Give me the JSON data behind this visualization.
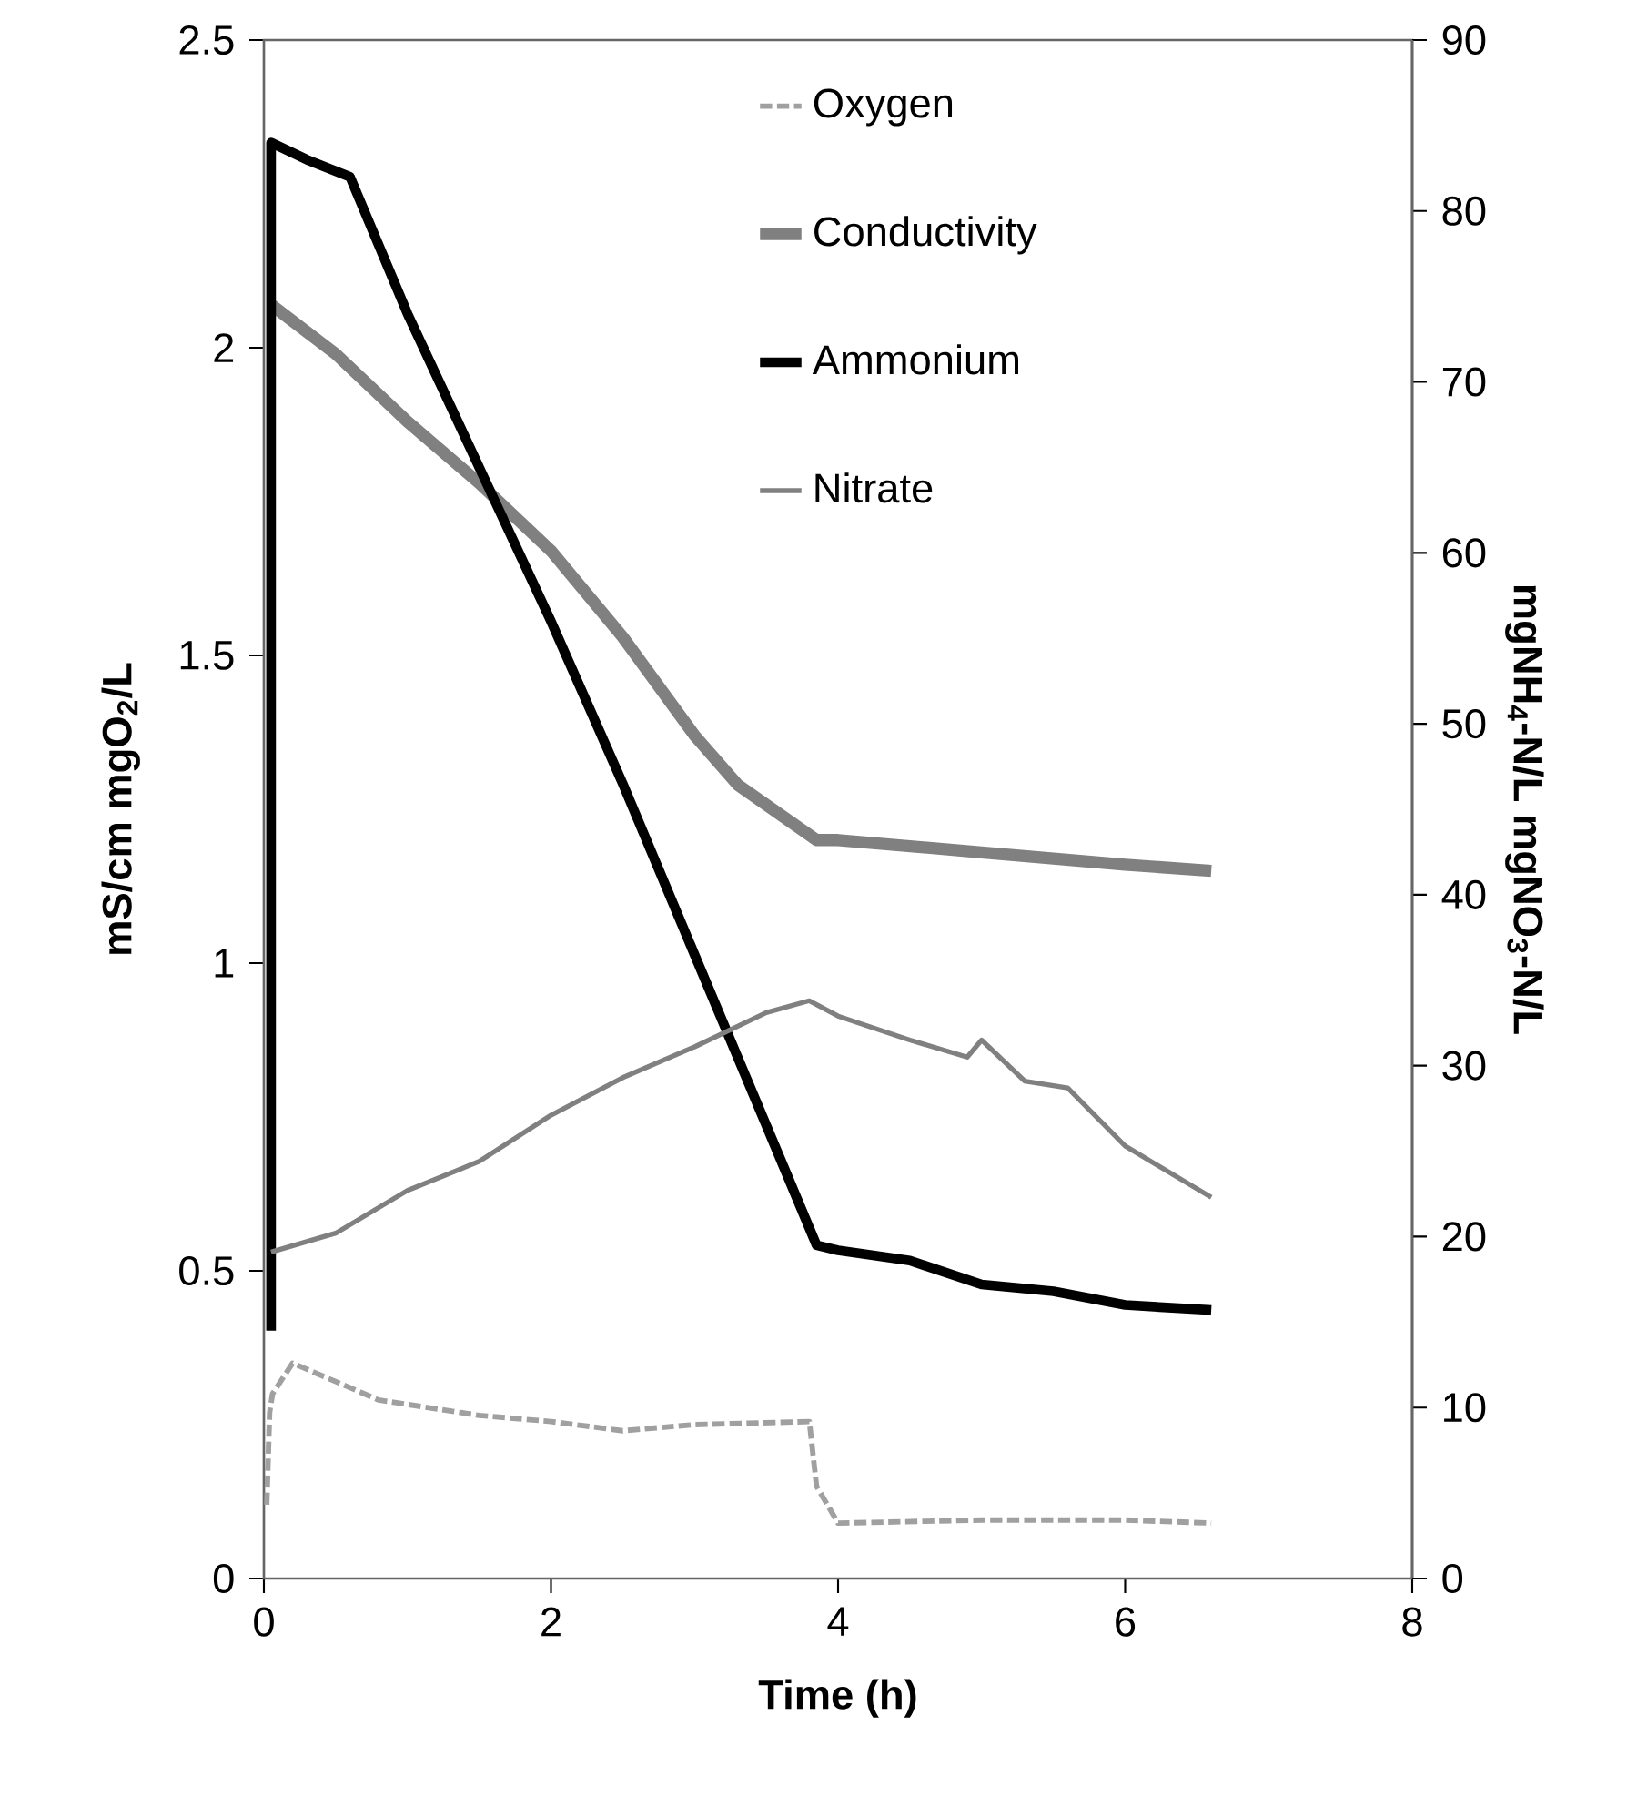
{
  "chart_data": {
    "type": "line",
    "xlabel": "Time (h)",
    "ylabel": "mS/cm  mgO$_{2}$/L",
    "y2label": "mgNH$_{4}$-N/L  mgNO$_{3}$-N/L",
    "xlim": [
      0,
      8
    ],
    "xticks": [
      0,
      2,
      4,
      6,
      8
    ],
    "ylim": [
      0,
      2.5
    ],
    "yticks": [
      0,
      0.5,
      1,
      1.5,
      2,
      2.5
    ],
    "y2lim": [
      0,
      90
    ],
    "y2ticks": [
      0,
      10,
      20,
      30,
      40,
      50,
      60,
      70,
      80,
      90
    ],
    "legend": "top right",
    "line_style": "solid",
    "marker": "none",
    "series": [
      {
        "name": "Oxygen",
        "color": "#a0a0a0",
        "line_style": "dashed",
        "x": [
          0.02,
          0.04,
          0.06,
          0.2,
          0.5,
          0.8,
          1.5,
          2,
          2.5,
          3,
          3.8,
          3.85,
          4,
          5,
          6,
          6.6
        ],
        "values": [
          0.12,
          0.27,
          0.3,
          0.35,
          0.32,
          0.29,
          0.265,
          0.255,
          0.24,
          0.25,
          0.255,
          0.15,
          0.09,
          0.095,
          0.095,
          0.09
        ]
      },
      {
        "name": "Conductivity",
        "color": "#808080",
        "x": [
          0.05,
          0.5,
          1,
          1.5,
          2,
          2.5,
          3,
          3.3,
          3.85,
          4,
          5,
          5.5,
          6,
          6.6
        ],
        "values": [
          2.07,
          1.99,
          1.88,
          1.78,
          1.67,
          1.53,
          1.37,
          1.29,
          1.2,
          1.2,
          1.18,
          1.17,
          1.16,
          1.15
        ]
      },
      {
        "name": "Ammonium",
        "color": "#000000",
        "axis": "y2",
        "x": [
          0.05,
          0.05,
          0.3,
          0.6,
          1,
          1.5,
          2,
          2.5,
          3,
          3.3,
          3.6,
          3.85,
          4,
          4.5,
          5,
          5.5,
          6,
          6.6
        ],
        "values": [
          14.5,
          84,
          83,
          82,
          74,
          65,
          56,
          46.5,
          36.5,
          30.5,
          24.5,
          19.5,
          19.2,
          18.6,
          17.2,
          16.8,
          16,
          15.7
        ]
      },
      {
        "name": "Nitrate",
        "color": "#808080",
        "axis": "y2",
        "x": [
          0.05,
          0.5,
          1,
          1.5,
          2,
          2.5,
          3,
          3.5,
          3.8,
          4,
          4.5,
          4.9,
          5,
          5.3,
          5.6,
          6,
          6.6
        ],
        "values": [
          19.1,
          20.2,
          22.7,
          24.4,
          27.1,
          29.3,
          31.1,
          33.1,
          33.8,
          32.9,
          31.5,
          30.5,
          31.5,
          29.1,
          28.7,
          25.3,
          22.3
        ]
      }
    ]
  }
}
